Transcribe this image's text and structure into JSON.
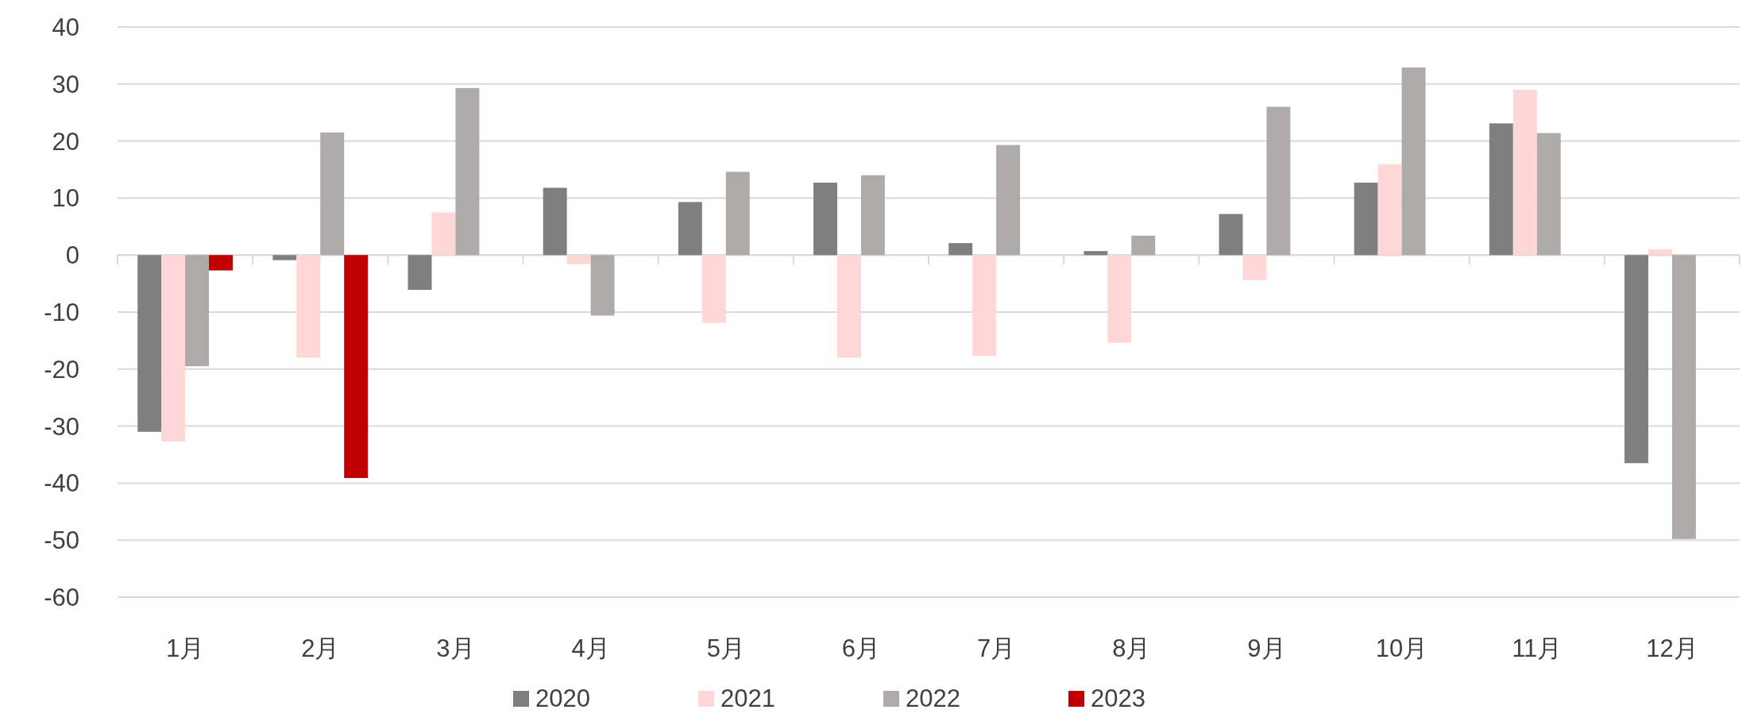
{
  "chart_data": {
    "type": "bar",
    "categories": [
      "1月",
      "2月",
      "3月",
      "4月",
      "5月",
      "6月",
      "7月",
      "8月",
      "9月",
      "10月",
      "11月",
      "12月"
    ],
    "series": [
      {
        "name": "2020",
        "color": "#7f7f7f",
        "values": [
          -31.0,
          -0.9,
          -6.1,
          11.8,
          9.3,
          12.7,
          2.1,
          0.7,
          7.2,
          12.7,
          23.1,
          -36.5
        ]
      },
      {
        "name": "2021",
        "color": "#ffd7d7",
        "values": [
          -32.7,
          -18.0,
          7.5,
          -1.6,
          -11.9,
          -18.0,
          -17.7,
          -15.4,
          -4.4,
          15.9,
          29.0,
          1.0
        ]
      },
      {
        "name": "2022",
        "color": "#aeaaaa",
        "values": [
          -19.5,
          21.5,
          29.3,
          -10.6,
          14.6,
          14.0,
          19.3,
          3.4,
          26.0,
          32.9,
          21.4,
          -49.8
        ]
      },
      {
        "name": "2023",
        "color": "#c00000",
        "values": [
          -2.7,
          -39.1,
          null,
          null,
          null,
          null,
          null,
          null,
          null,
          null,
          null,
          null
        ]
      }
    ],
    "ylim": [
      -60,
      40
    ],
    "yticks": [
      -60,
      -50,
      -40,
      -30,
      -20,
      -10,
      0,
      10,
      20,
      30,
      40
    ],
    "grid": "y",
    "legend": "bottom"
  }
}
